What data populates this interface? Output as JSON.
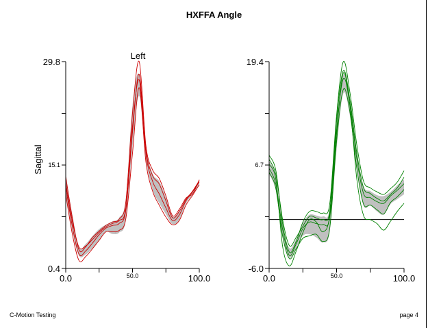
{
  "page": {
    "title": "HXFFA Angle",
    "footer_left": "C-Motion Testing",
    "footer_right": "page 4"
  },
  "chart_data": [
    {
      "type": "line",
      "title": "Left",
      "ylabel": "Sagittal",
      "xlim": [
        0,
        100
      ],
      "ylim": [
        0.4,
        29.8
      ],
      "x_ticks": [
        "0.0",
        "50.0",
        "100.0"
      ],
      "y_ticks": [
        "0.4",
        "15.1",
        "29.8"
      ],
      "color": "#cc0000",
      "band_color": "#c0c0c0",
      "x": [
        0,
        5,
        10,
        15,
        20,
        25,
        30,
        35,
        40,
        45,
        50,
        55,
        60,
        65,
        70,
        75,
        80,
        85,
        90,
        95,
        100
      ],
      "band_upper": [
        13.4,
        8.0,
        3.4,
        3.9,
        5.0,
        6.0,
        6.6,
        7.1,
        7.6,
        10.3,
        23.6,
        27.9,
        17.8,
        13.9,
        12.8,
        10.5,
        7.8,
        8.6,
        10.4,
        11.3,
        13.0
      ],
      "band_lower": [
        11.2,
        5.6,
        2.2,
        2.4,
        3.3,
        4.3,
        5.6,
        5.3,
        5.5,
        7.3,
        17.6,
        24.9,
        15.9,
        11.6,
        9.7,
        8.1,
        6.7,
        7.3,
        9.6,
        10.9,
        12.2
      ],
      "series": [
        {
          "values": [
            13.5,
            7.5,
            3.0,
            3.5,
            4.8,
            5.7,
            6.5,
            7.0,
            7.4,
            9.9,
            22.5,
            29.8,
            17.9,
            14.4,
            13.2,
            10.7,
            7.9,
            8.8,
            10.4,
            11.0,
            13.0
          ]
        },
        {
          "values": [
            12.0,
            6.3,
            2.4,
            2.9,
            4.0,
            5.2,
            6.1,
            6.5,
            6.8,
            8.7,
            19.8,
            28.0,
            16.8,
            12.8,
            11.0,
            9.0,
            7.2,
            8.0,
            10.0,
            11.3,
            12.7
          ]
        },
        {
          "values": [
            11.0,
            5.2,
            1.5,
            2.1,
            3.2,
            4.4,
            5.6,
            5.6,
            5.8,
            7.5,
            16.8,
            26.1,
            15.6,
            11.4,
            9.4,
            7.7,
            6.6,
            7.2,
            9.4,
            10.8,
            12.3
          ]
        },
        {
          "values": [
            12.6,
            7.0,
            3.4,
            3.6,
            4.5,
            5.5,
            6.3,
            6.8,
            7.2,
            9.0,
            20.6,
            27.2,
            17.2,
            13.6,
            12.4,
            10.0,
            7.6,
            8.5,
            10.2,
            11.4,
            12.9
          ]
        }
      ]
    },
    {
      "type": "line",
      "title": "",
      "ylabel": "",
      "xlim": [
        0,
        100
      ],
      "ylim": [
        -6.0,
        19.4
      ],
      "x_ticks": [
        "0.0",
        "50.0",
        "100.0"
      ],
      "y_ticks": [
        "-6.0",
        "6.7",
        "19.4"
      ],
      "zero_line": 0,
      "color": "#008000",
      "band_color": "#c0c0c0",
      "x": [
        0,
        5,
        10,
        15,
        20,
        25,
        30,
        35,
        40,
        45,
        50,
        55,
        60,
        65,
        70,
        75,
        80,
        85,
        90,
        95,
        100
      ],
      "band_upper": [
        7.2,
        5.4,
        -0.6,
        -3.5,
        -2.4,
        -0.4,
        0.6,
        0.5,
        0.4,
        1.4,
        11.8,
        17.8,
        14.8,
        8.3,
        4.1,
        3.5,
        3.0,
        2.9,
        3.4,
        4.2,
        4.9
      ],
      "band_lower": [
        5.6,
        3.5,
        -2.3,
        -4.7,
        -3.5,
        -2.0,
        -1.8,
        -2.2,
        -2.8,
        -1.4,
        8.6,
        15.5,
        12.6,
        6.0,
        1.7,
        1.7,
        1.0,
        0.6,
        1.9,
        2.5,
        3.1
      ],
      "series": [
        {
          "values": [
            7.9,
            6.0,
            -0.5,
            -4.0,
            -2.7,
            -0.3,
            1.0,
            1.0,
            0.8,
            2.0,
            12.8,
            19.4,
            15.5,
            9.2,
            4.7,
            3.9,
            3.4,
            3.1,
            3.8,
            4.6,
            6.0
          ]
        },
        {
          "values": [
            6.3,
            4.3,
            -1.2,
            -4.4,
            -3.0,
            -1.1,
            -0.3,
            -0.5,
            -0.6,
            0.3,
            10.5,
            18.0,
            14.0,
            7.5,
            3.2,
            2.7,
            2.2,
            2.0,
            2.9,
            3.6,
            4.4
          ]
        },
        {
          "values": [
            5.8,
            3.8,
            -2.0,
            -4.8,
            -3.6,
            -2.3,
            -2.0,
            -1.8,
            -2.7,
            -1.0,
            9.6,
            16.0,
            13.1,
            6.3,
            1.9,
            1.8,
            1.2,
            0.7,
            2.1,
            2.8,
            3.7
          ]
        },
        {
          "values": [
            6.8,
            4.9,
            -3.3,
            -5.7,
            -3.9,
            -1.6,
            0.0,
            -0.3,
            -1.5,
            0.6,
            11.0,
            17.3,
            13.8,
            5.0,
            0.5,
            0.0,
            -0.5,
            -1.3,
            -0.2,
            1.0,
            2.0
          ]
        },
        {
          "values": [
            7.4,
            5.5,
            0.0,
            -3.2,
            -2.2,
            -0.8,
            0.4,
            0.2,
            0.0,
            1.1,
            12.1,
            18.3,
            14.6,
            8.2,
            3.9,
            3.2,
            2.6,
            2.3,
            3.1,
            3.9,
            5.2
          ]
        }
      ]
    }
  ]
}
